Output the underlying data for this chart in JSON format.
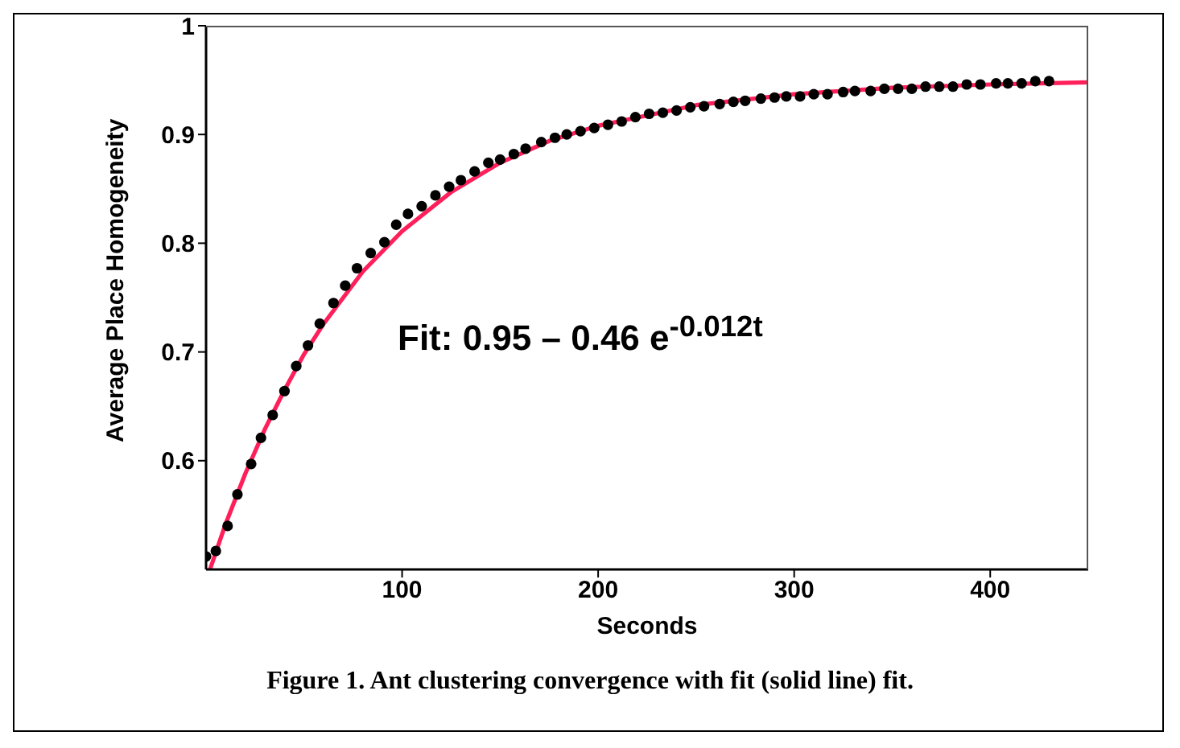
{
  "chart_data": {
    "type": "scatter",
    "xlabel": "Seconds",
    "ylabel": "Average Place Homogeneity",
    "annotations": [
      "Fit: 0.95 – 0.46 e$^{-0.012t}$",
      "Figure 1. Ant clustering convergence with fit (solid line) fit."
    ],
    "xlim": [
      0,
      450
    ],
    "xticks": [
      100,
      200,
      300,
      400
    ],
    "ylim": [
      0.5,
      1
    ],
    "yticks": [
      0.6,
      0.7,
      0.8,
      0.9,
      1
    ],
    "grid": false,
    "legend": false,
    "series": [
      {
        "marker": "circle",
        "color": "#000000",
        "x": [
          0,
          5,
          11,
          16,
          23,
          28,
          34,
          40,
          46,
          52,
          58,
          65,
          71,
          77,
          84,
          91,
          97,
          103,
          110,
          117,
          124,
          130,
          137,
          144,
          150,
          157,
          163,
          171,
          178,
          184,
          191,
          198,
          205,
          212,
          219,
          226,
          233,
          240,
          247,
          254,
          262,
          269,
          275,
          283,
          290,
          296,
          303,
          310,
          317,
          325,
          331,
          339,
          346,
          353,
          360,
          367,
          374,
          381,
          388,
          395,
          403,
          409,
          416,
          423,
          430
        ],
        "values": [
          0.512,
          0.517,
          0.54,
          0.569,
          0.597,
          0.621,
          0.642,
          0.664,
          0.687,
          0.706,
          0.726,
          0.745,
          0.761,
          0.777,
          0.791,
          0.801,
          0.817,
          0.827,
          0.834,
          0.844,
          0.852,
          0.858,
          0.866,
          0.874,
          0.877,
          0.882,
          0.887,
          0.893,
          0.897,
          0.9,
          0.903,
          0.906,
          0.909,
          0.912,
          0.916,
          0.919,
          0.92,
          0.922,
          0.925,
          0.926,
          0.928,
          0.93,
          0.931,
          0.933,
          0.934,
          0.935,
          0.935,
          0.937,
          0.937,
          0.939,
          0.94,
          0.94,
          0.942,
          0.942,
          0.942,
          0.944,
          0.944,
          0.944,
          0.946,
          0.946,
          0.947,
          0.947,
          0.947,
          0.949,
          0.949
        ]
      },
      {
        "type": "line",
        "marker": "none",
        "line_style": "solid",
        "color": "#ff1f5a",
        "x": [
          2,
          10,
          20,
          30,
          40,
          50,
          60,
          80,
          100,
          125,
          150,
          175,
          200,
          250,
          300,
          350,
          400,
          450
        ],
        "values": [
          0.5,
          0.542,
          0.588,
          0.629,
          0.665,
          0.698,
          0.726,
          0.774,
          0.811,
          0.847,
          0.874,
          0.894,
          0.908,
          0.927,
          0.937,
          0.943,
          0.946,
          0.948
        ]
      }
    ]
  }
}
